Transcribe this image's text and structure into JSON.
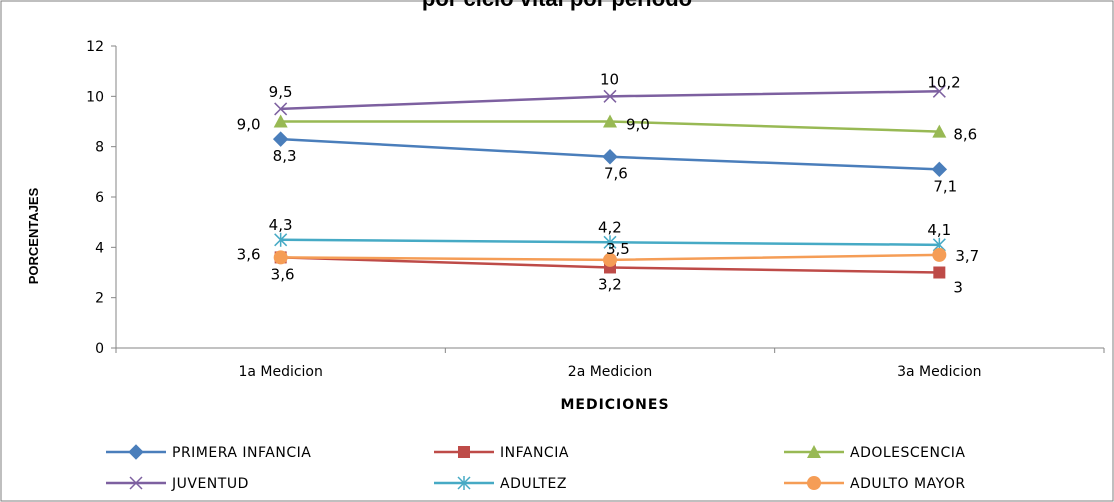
{
  "chart_data": {
    "type": "line",
    "title": "",
    "title_fragment": "por ciclo vital por periodo",
    "xlabel": "MEDICIONES",
    "ylabel": "PORCENTAJES",
    "categories": [
      "1a Medicion",
      "2a Medicion",
      "3a Medicion"
    ],
    "ylim": [
      0,
      12
    ],
    "yticks": [
      "0",
      "2",
      "4",
      "6",
      "8",
      "10",
      "12"
    ],
    "grid": false,
    "legend_position": "bottom",
    "series": [
      {
        "name": "PRIMERA INFANCIA",
        "values": [
          8.3,
          7.6,
          7.1
        ],
        "labels": [
          "8,3",
          "7,6",
          "7,1"
        ],
        "color": "#4a7ebb",
        "marker": "diamond"
      },
      {
        "name": "INFANCIA",
        "values": [
          3.6,
          3.2,
          3.0
        ],
        "labels": [
          "3,6",
          "3,2",
          "3"
        ],
        "color": "#be4b48",
        "marker": "square"
      },
      {
        "name": "ADOLESCENCIA",
        "values": [
          9.0,
          9.0,
          8.6
        ],
        "labels": [
          "9,0",
          "9,0",
          "8,6"
        ],
        "color": "#98b954",
        "marker": "triangle"
      },
      {
        "name": "JUVENTUD",
        "values": [
          9.5,
          10.0,
          10.2
        ],
        "labels": [
          "9,5",
          "10",
          "10,2"
        ],
        "color": "#7d60a0",
        "marker": "x"
      },
      {
        "name": "ADULTEZ",
        "values": [
          4.3,
          4.2,
          4.1
        ],
        "labels": [
          "4,3",
          "4,2",
          "4,1"
        ],
        "color": "#46aac5",
        "marker": "star"
      },
      {
        "name": "ADULTO MAYOR",
        "values": [
          3.6,
          3.5,
          3.7
        ],
        "labels": [
          "3,6",
          "3,5",
          "3,7"
        ],
        "color": "#f59d56",
        "marker": "circle"
      }
    ]
  }
}
